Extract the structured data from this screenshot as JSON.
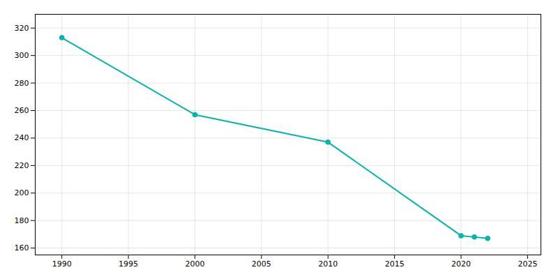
{
  "chart_data": {
    "type": "line",
    "x": [
      1990,
      2000,
      2010,
      2020,
      2021,
      2022
    ],
    "values": [
      313,
      257,
      237,
      169,
      168,
      167
    ],
    "color": "#00b5b0",
    "marker": "circle",
    "xlim": [
      1988,
      2026
    ],
    "ylim": [
      155,
      330
    ],
    "xticks": [
      1990,
      1995,
      2000,
      2005,
      2010,
      2015,
      2020,
      2025
    ],
    "yticks": [
      160,
      180,
      200,
      220,
      240,
      260,
      280,
      300,
      320
    ],
    "grid": true
  }
}
